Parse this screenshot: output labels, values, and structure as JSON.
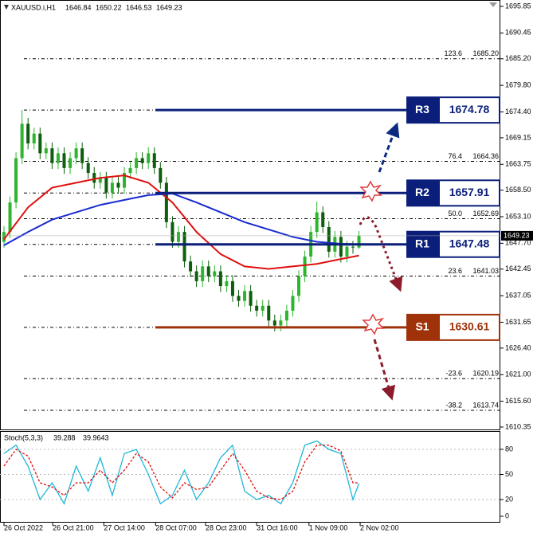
{
  "chart_data": [
    {
      "type": "candlestick",
      "symbol": "XAUUSD.i,H1",
      "up_color": "#2db52d",
      "down_color": "#0d5e0d",
      "open": [
        1648,
        1650,
        1656,
        1665,
        1672,
        1668,
        1670,
        1666,
        1667,
        1664,
        1666,
        1663,
        1665,
        1667,
        1664,
        1662,
        1660,
        1661,
        1658,
        1660,
        1659,
        1662,
        1663,
        1665,
        1664,
        1666,
        1663,
        1660,
        1652,
        1648,
        1650,
        1644,
        1642,
        1640,
        1643,
        1641,
        1642,
        1639,
        1640,
        1637,
        1636,
        1638,
        1635,
        1634,
        1635,
        1632,
        1631,
        1632,
        1634,
        1637,
        1641,
        1645,
        1650,
        1654,
        1651,
        1646,
        1649,
        1645,
        1647,
        1646.84
      ],
      "high": [
        1651.2,
        1657.2,
        1666.2,
        1674.8,
        1673.2,
        1671.2,
        1671.2,
        1668.2,
        1668.2,
        1667.2,
        1667.2,
        1666.2,
        1668.2,
        1668.2,
        1665.2,
        1663.2,
        1662.2,
        1662.2,
        1661.2,
        1661.2,
        1663.2,
        1664.2,
        1666.2,
        1666.2,
        1667.2,
        1667.2,
        1664.2,
        1661.2,
        1653.2,
        1651.2,
        1651.2,
        1645.2,
        1643.2,
        1644.2,
        1644.2,
        1643.2,
        1643.2,
        1641.2,
        1641.2,
        1638.2,
        1639.2,
        1639.2,
        1636.2,
        1636.2,
        1636.2,
        1633.2,
        1633.2,
        1635.2,
        1638.2,
        1642.2,
        1646.2,
        1651.2,
        1656.2,
        1655.2,
        1652.2,
        1650.2,
        1650.2,
        1648.2,
        1648.2,
        1650.22
      ],
      "low": [
        1646.8,
        1648.8,
        1654.8,
        1663.8,
        1666.8,
        1666.8,
        1664.8,
        1664.8,
        1662.8,
        1662.8,
        1661.8,
        1661.8,
        1663.8,
        1662.8,
        1660.8,
        1658.8,
        1658.8,
        1656.8,
        1656.8,
        1657.8,
        1657.8,
        1660.8,
        1661.8,
        1662.8,
        1662.8,
        1661.8,
        1658.8,
        1650.8,
        1646.8,
        1646.8,
        1642.8,
        1640.8,
        1638.8,
        1638.8,
        1639.8,
        1639.8,
        1637.8,
        1637.8,
        1635.8,
        1634.8,
        1634.8,
        1633.8,
        1632.8,
        1632.8,
        1630.8,
        1629.8,
        1629.8,
        1630.8,
        1632.8,
        1635.8,
        1639.8,
        1643.8,
        1648.8,
        1649.8,
        1644.8,
        1644.8,
        1643.8,
        1643.8,
        1645.6,
        1646.53
      ],
      "close": [
        1650,
        1656,
        1665,
        1672,
        1668,
        1670,
        1666,
        1667,
        1664,
        1666,
        1663,
        1665,
        1667,
        1664,
        1662,
        1660,
        1661,
        1658,
        1660,
        1659,
        1662,
        1663,
        1665,
        1664,
        1666,
        1663,
        1660,
        1652,
        1648,
        1650,
        1644,
        1642,
        1640,
        1643,
        1641,
        1642,
        1639,
        1640,
        1637,
        1636,
        1638,
        1635,
        1634,
        1635,
        1632,
        1631,
        1632,
        1634,
        1637,
        1641,
        1645,
        1650,
        1654,
        1651,
        1646,
        1649,
        1645,
        1647,
        1646.84,
        1649.23
      ],
      "moving_averages": [
        {
          "color": "#e01010",
          "x": [
            0,
            4,
            8,
            12,
            16,
            20,
            24,
            28,
            32,
            36,
            40,
            44,
            48,
            52,
            56,
            59
          ],
          "values": [
            1648.5,
            1655,
            1659,
            1660,
            1661,
            1661.5,
            1660,
            1656,
            1650,
            1645.5,
            1643,
            1642.5,
            1643,
            1643.5,
            1644.5,
            1645.2
          ]
        },
        {
          "color": "#1a2ad0",
          "x": [
            0,
            4,
            8,
            12,
            16,
            20,
            24,
            28,
            32,
            36,
            40,
            44,
            48,
            52,
            56,
            59
          ],
          "values": [
            1647.3,
            1650,
            1652.5,
            1654,
            1655.5,
            1656.5,
            1657.5,
            1657.8,
            1656,
            1654,
            1652,
            1650.5,
            1649,
            1648,
            1647.6,
            1647.5
          ]
        }
      ],
      "levels": [
        {
          "label": "R3",
          "value": 1674.78,
          "color": "#0b1f7a"
        },
        {
          "label": "R2",
          "value": 1657.91,
          "color": "#0b1f7a"
        },
        {
          "label": "R1",
          "value": 1647.48,
          "color": "#0b1f7a"
        },
        {
          "label": "S1",
          "value": 1630.61,
          "color": "#a0320a"
        }
      ],
      "fibonacci": [
        {
          "ratio": "123.6",
          "value": 1685.2,
          "label": "1685.20"
        },
        {
          "ratio": "76.4",
          "value": 1664.36,
          "label": "1664.36"
        },
        {
          "ratio": "50.0",
          "value": 1652.69,
          "label": "1652.69"
        },
        {
          "ratio": "23.6",
          "value": 1641.03,
          "label": "1641.03"
        },
        {
          "ratio": "-23.6",
          "value": 1620.19,
          "label": "1620.19"
        },
        {
          "ratio": "-38.2",
          "value": 1613.74,
          "label": "1613.74"
        }
      ],
      "xlim": [
        -0.66,
        82.5
      ],
      "ylim": [
        1609.7,
        1697.15
      ],
      "yticks": [
        1695.85,
        1690.45,
        {
          "value": 1685.2,
          "label": "1685.20"
        },
        {
          "value": 1679.8,
          "label": "1679.80"
        },
        {
          "value": 1674.4,
          "label": "1674.40"
        },
        1669.15,
        1663.75,
        {
          "value": 1658.5,
          "label": "1658.50"
        },
        {
          "value": 1653.1,
          "label": "1653.10"
        },
        {
          "value": 1647.7,
          "label": "1647.70"
        },
        1642.45,
        1637.05,
        1631.65,
        {
          "value": 1626.4,
          "label": "1626.40"
        },
        {
          "value": 1621,
          "label": "1621.00"
        },
        {
          "value": 1615.6,
          "label": "1615.60"
        },
        1610.35
      ]
    },
    {
      "type": "line",
      "title": "Stoch(5,3,3)",
      "x": [
        0,
        2,
        4,
        6,
        8,
        10,
        12,
        14,
        16,
        18,
        20,
        22,
        24,
        26,
        28,
        30,
        32,
        34,
        36,
        38,
        40,
        42,
        44,
        46,
        48,
        50,
        52,
        54,
        56,
        58,
        59
      ],
      "series": [
        {
          "color": "#1fb7d8",
          "dash": false,
          "values": [
            75,
            85,
            60,
            20,
            40,
            15,
            60,
            30,
            70,
            25,
            75,
            80,
            50,
            15,
            25,
            55,
            20,
            40,
            70,
            85,
            30,
            20,
            25,
            15,
            40,
            85,
            90,
            80,
            75,
            20,
            39.288
          ]
        },
        {
          "color": "#e01010",
          "dash": true,
          "values": [
            60,
            80,
            72,
            40,
            35,
            25,
            40,
            40,
            55,
            40,
            55,
            75,
            65,
            35,
            22,
            40,
            32,
            35,
            55,
            75,
            55,
            30,
            22,
            20,
            30,
            65,
            85,
            85,
            78,
            40,
            39.9643
          ]
        }
      ],
      "xlim": [
        -0.66,
        82.5
      ],
      "ylim": [
        0,
        100
      ],
      "yticks": [
        80,
        50,
        20,
        0
      ],
      "xticks": [
        {
          "value": 0,
          "label": "26 Oct 2022"
        },
        {
          "value": 8.1,
          "label": "26 Oct 21:00"
        },
        {
          "value": 16.6,
          "label": "27 Oct 14:00"
        },
        {
          "value": 25.2,
          "label": "28 Oct 07:00"
        },
        {
          "value": 33.5,
          "label": "28 Oct 23:00"
        },
        {
          "value": 42,
          "label": "31 Oct 16:00"
        },
        {
          "value": 50.7,
          "label": "1 Nov 09:00"
        },
        {
          "value": 59.2,
          "label": "2 Nov 02:00"
        }
      ]
    }
  ]
}
